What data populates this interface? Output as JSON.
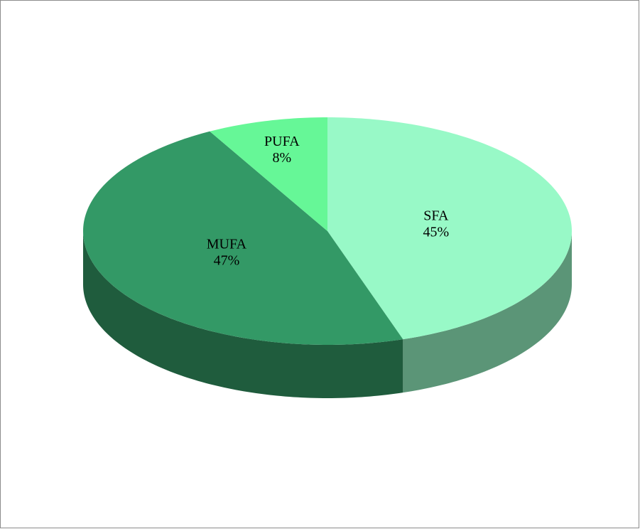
{
  "chart_data": {
    "type": "pie",
    "categories": [
      "SFA",
      "MUFA",
      "PUFA"
    ],
    "values": [
      45,
      47,
      8
    ],
    "value_labels": [
      "45%",
      "47%",
      "8%"
    ],
    "colors": [
      "#98f9c7",
      "#339966",
      "#66f797"
    ]
  }
}
